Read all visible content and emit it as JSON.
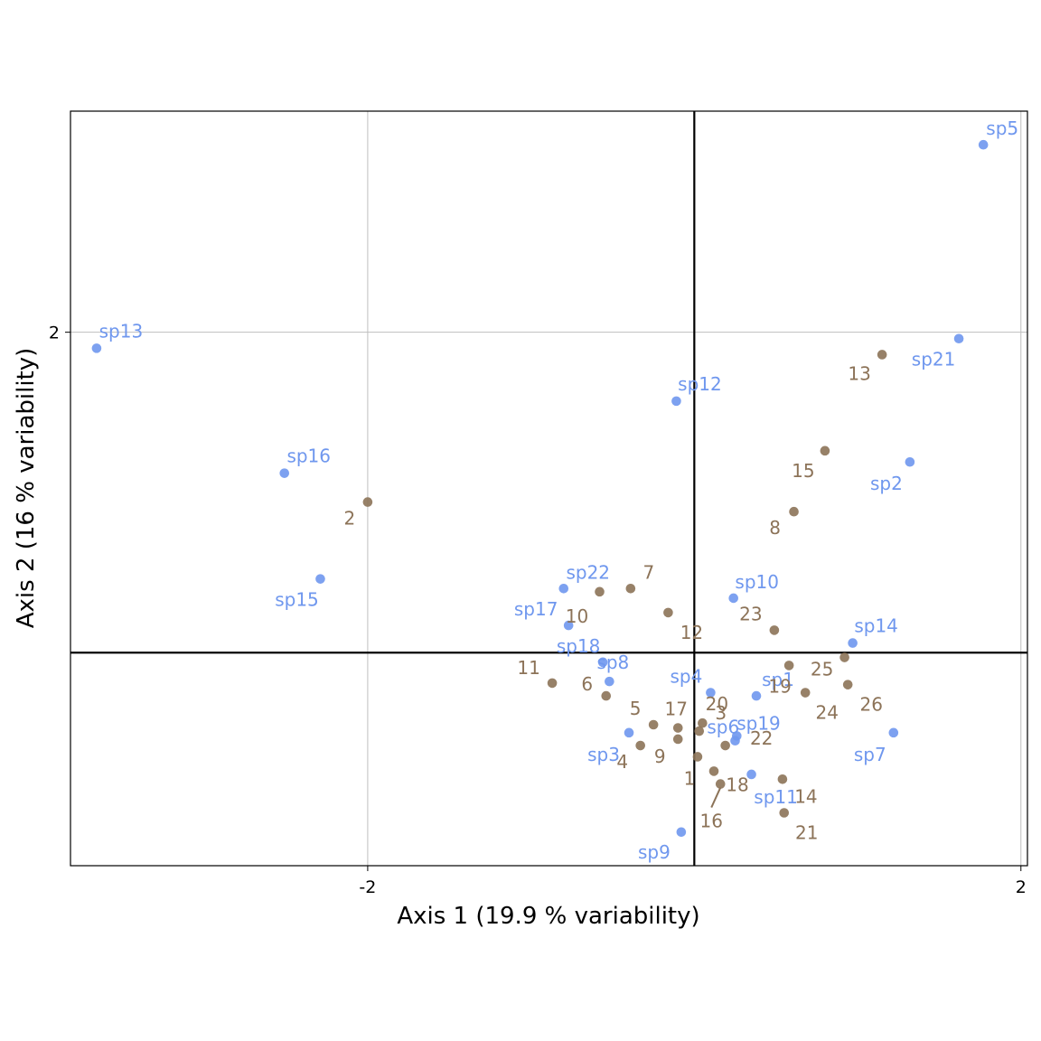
{
  "chart_data": {
    "type": "scatter",
    "title": "",
    "xlabel": "Axis 1 (19.9 % variability)",
    "ylabel": "Axis 2 (16 % variability)",
    "xlim": [
      -3.82,
      2.04
    ],
    "ylim": [
      -1.33,
      3.38
    ],
    "xticks": [
      {
        "value": -2,
        "label": "-2"
      },
      {
        "value": 2,
        "label": "2"
      }
    ],
    "yticks": [
      {
        "value": 2,
        "label": "2"
      }
    ],
    "grid": true,
    "legend": "none",
    "colors": {
      "species": "#6f97ee",
      "sites": "#8c7358",
      "zero_lines": "#000000",
      "grid": "#bfbfbf"
    },
    "series": [
      {
        "points": [
          {
            "label": "sp1",
            "x": 0.38,
            "y": -0.27
          },
          {
            "label": "sp2",
            "x": 1.32,
            "y": 1.19
          },
          {
            "label": "sp3",
            "x": -0.4,
            "y": -0.5
          },
          {
            "label": "sp4",
            "x": 0.1,
            "y": -0.25
          },
          {
            "label": "sp5",
            "x": 1.77,
            "y": 3.17
          },
          {
            "label": "sp6",
            "x": 0.26,
            "y": -0.52
          },
          {
            "label": "sp7",
            "x": 1.22,
            "y": -0.5
          },
          {
            "label": "sp8",
            "x": -0.52,
            "y": -0.18
          },
          {
            "label": "sp9",
            "x": -0.08,
            "y": -1.12
          },
          {
            "label": "sp10",
            "x": 0.24,
            "y": 0.34
          },
          {
            "label": "sp11",
            "x": 0.35,
            "y": -0.76
          },
          {
            "label": "sp12",
            "x": -0.11,
            "y": 1.57
          },
          {
            "label": "sp13",
            "x": -3.66,
            "y": 1.9
          },
          {
            "label": "sp14",
            "x": 0.97,
            "y": 0.06
          },
          {
            "label": "sp15",
            "x": -2.29,
            "y": 0.46
          },
          {
            "label": "sp16",
            "x": -2.51,
            "y": 1.12
          },
          {
            "label": "sp17",
            "x": -0.77,
            "y": 0.17
          },
          {
            "label": "sp18",
            "x": -0.56,
            "y": -0.06
          },
          {
            "label": "sp19",
            "x": 0.25,
            "y": -0.55
          },
          {
            "label": "sp21",
            "x": 1.62,
            "y": 1.96
          },
          {
            "label": "sp22",
            "x": -0.8,
            "y": 0.4
          }
        ]
      },
      {
        "points": [
          {
            "label": "1",
            "x": 0.02,
            "y": -0.65
          },
          {
            "label": "2",
            "x": -2.0,
            "y": 0.94
          },
          {
            "label": "3",
            "x": 0.03,
            "y": -0.49
          },
          {
            "label": "4",
            "x": -0.33,
            "y": -0.58
          },
          {
            "label": "5",
            "x": -0.25,
            "y": -0.45
          },
          {
            "label": "6",
            "x": -0.54,
            "y": -0.27
          },
          {
            "label": "7",
            "x": -0.39,
            "y": 0.4
          },
          {
            "label": "8",
            "x": 0.61,
            "y": 0.88
          },
          {
            "label": "9",
            "x": -0.1,
            "y": -0.54
          },
          {
            "label": "10",
            "x": -0.58,
            "y": 0.38
          },
          {
            "label": "11",
            "x": -0.87,
            "y": -0.19
          },
          {
            "label": "12",
            "x": -0.16,
            "y": 0.25
          },
          {
            "label": "13",
            "x": 1.15,
            "y": 1.86
          },
          {
            "label": "14",
            "x": 0.54,
            "y": -0.79
          },
          {
            "label": "15",
            "x": 0.8,
            "y": 1.26
          },
          {
            "label": "16",
            "x": 0.16,
            "y": -0.82
          },
          {
            "label": "17",
            "x": -0.1,
            "y": -0.47
          },
          {
            "label": "18",
            "x": 0.12,
            "y": -0.74
          },
          {
            "label": "19",
            "x": 0.58,
            "y": -0.08
          },
          {
            "label": "20",
            "x": 0.05,
            "y": -0.44
          },
          {
            "label": "21",
            "x": 0.55,
            "y": -1.0
          },
          {
            "label": "22",
            "x": 0.19,
            "y": -0.58
          },
          {
            "label": "23",
            "x": 0.49,
            "y": 0.14
          },
          {
            "label": "24",
            "x": 0.68,
            "y": -0.25
          },
          {
            "label": "25",
            "x": 0.92,
            "y": -0.03
          },
          {
            "label": "26",
            "x": 0.94,
            "y": -0.2
          }
        ]
      }
    ]
  }
}
